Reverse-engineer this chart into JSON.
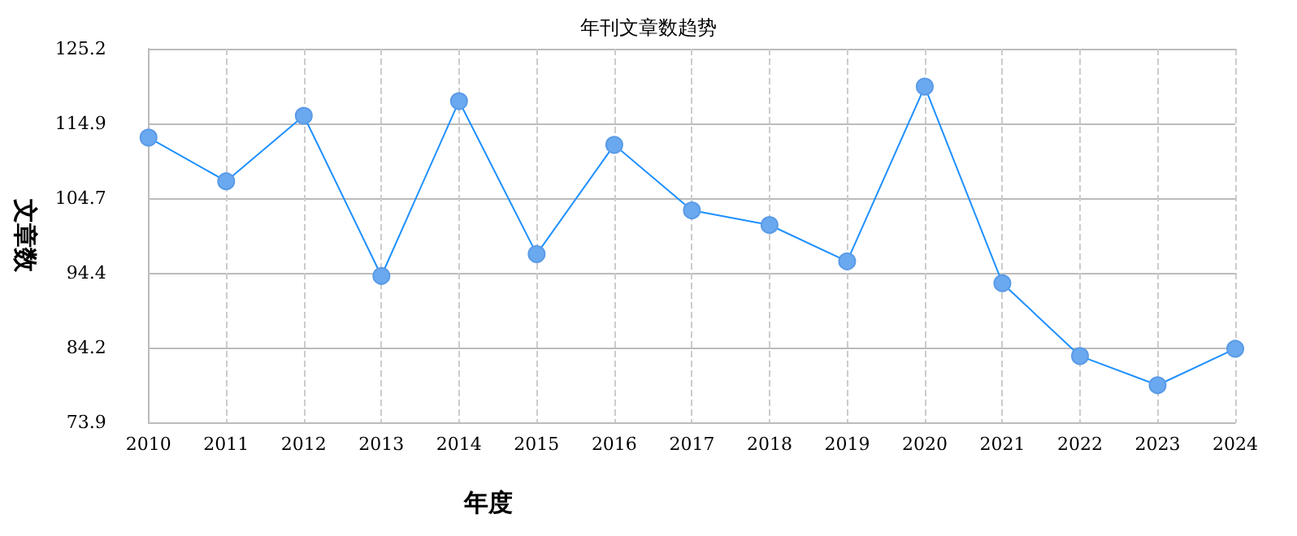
{
  "chart_data": {
    "type": "line",
    "title": "年刊文章数趋势",
    "xlabel": "年度",
    "ylabel": "文章数",
    "categories": [
      "2010",
      "2011",
      "2012",
      "2013",
      "2014",
      "2015",
      "2016",
      "2017",
      "2018",
      "2019",
      "2020",
      "2021",
      "2022",
      "2023",
      "2024"
    ],
    "series": [
      {
        "color": "#1e90ff",
        "values": [
          113,
          107,
          116,
          94,
          118,
          97,
          112,
          103,
          101,
          96,
          120,
          93,
          83,
          79,
          84
        ]
      }
    ],
    "ylim": [
      73.9,
      125.2
    ],
    "yticks": [
      73.9,
      84.2,
      94.4,
      104.7,
      114.9,
      125.2
    ],
    "grid": true,
    "marker": "circle",
    "line_style": "solid"
  }
}
